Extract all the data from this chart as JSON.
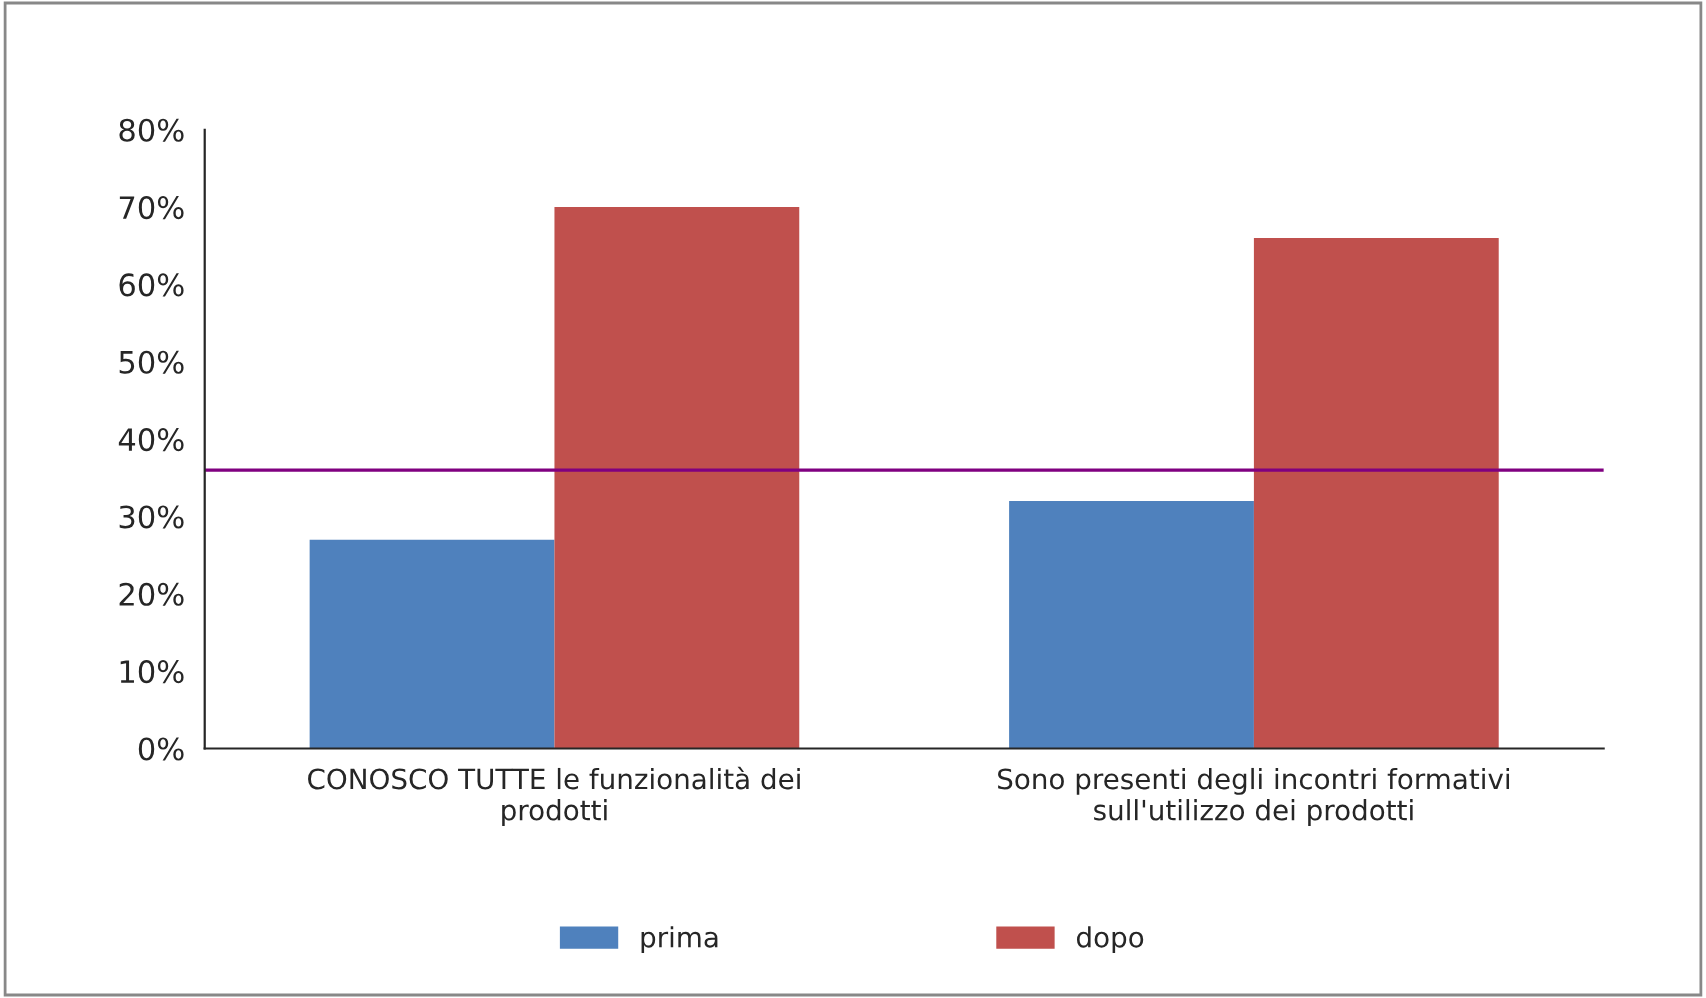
{
  "chart_data": {
    "type": "bar",
    "categories": [
      "CONOSCO TUTTE le funzionalità dei\nprodotti",
      "Sono presenti degli incontri formativi\nsull'utilizzo dei prodotti"
    ],
    "series": [
      {
        "name": "prima",
        "color": "#4f81bd",
        "values": [
          27,
          32
        ]
      },
      {
        "name": "dopo",
        "color": "#c0504d",
        "values": [
          70,
          66
        ]
      }
    ],
    "ylim": [
      0,
      80
    ],
    "yticks": [
      {
        "value": 0,
        "label": "0%"
      },
      {
        "value": 10,
        "label": "10%"
      },
      {
        "value": 20,
        "label": "20%"
      },
      {
        "value": 30,
        "label": "30%"
      },
      {
        "value": 40,
        "label": "40%"
      },
      {
        "value": 50,
        "label": "50%"
      },
      {
        "value": 60,
        "label": "60%"
      },
      {
        "value": 70,
        "label": "70%"
      },
      {
        "value": 80,
        "label": "80%"
      }
    ],
    "ref_lines": [
      {
        "axis": "y",
        "value": 36,
        "color": "#800080"
      }
    ],
    "grid": false,
    "legend": "bottom"
  }
}
